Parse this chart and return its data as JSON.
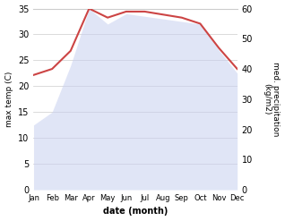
{
  "months": [
    "Jan",
    "Feb",
    "Mar",
    "Apr",
    "May",
    "Jun",
    "Jul",
    "Aug",
    "Sep",
    "Oct",
    "Nov",
    "Dec"
  ],
  "temp_max": [
    12.5,
    15.0,
    24.0,
    35.0,
    32.0,
    34.0,
    33.5,
    33.0,
    32.5,
    32.0,
    27.0,
    22.5
  ],
  "precip": [
    38,
    40,
    46,
    60,
    57,
    59,
    59,
    58,
    57,
    55,
    47,
    40
  ],
  "precip_fill_color": "#c8d0f0",
  "temp_line_color": "#cc4444",
  "ylim_temp": [
    0,
    35
  ],
  "ylim_precip": [
    0,
    60
  ],
  "xlabel": "date (month)",
  "ylabel_left": "max temp (C)",
  "ylabel_right": "med. precipitation\n(kg/m2)",
  "bg_color": "#ffffff",
  "grid_color": "#cccccc"
}
